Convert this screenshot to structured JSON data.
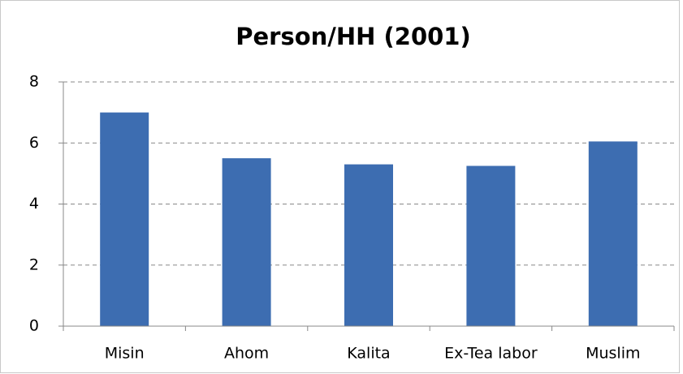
{
  "chart_data": {
    "type": "bar",
    "title": "Person/HH (2001)",
    "categories": [
      "Misin",
      "Ahom",
      "Kalita",
      "Ex-Tea labor",
      "Muslim"
    ],
    "values": [
      7.0,
      5.5,
      5.3,
      5.25,
      6.05
    ],
    "color": "#3d6db1",
    "ylim": [
      0,
      8
    ],
    "yticks": [
      0,
      2,
      4,
      6,
      8
    ],
    "grid": true
  }
}
